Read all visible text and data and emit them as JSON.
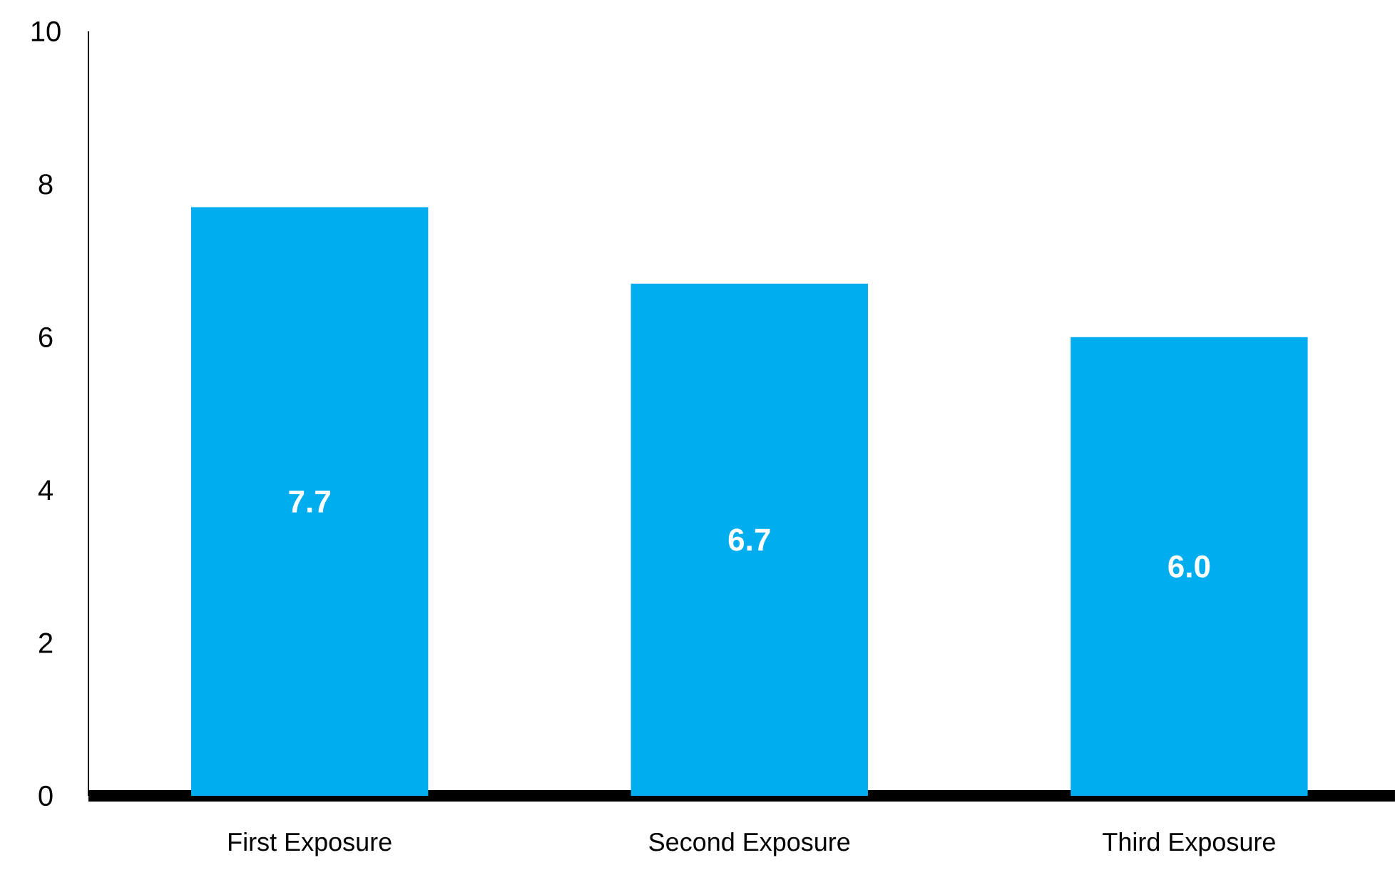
{
  "chart_data": {
    "type": "bar",
    "categories": [
      "First Exposure",
      "Second Exposure",
      "Third Exposure"
    ],
    "values": [
      7.7,
      6.7,
      6.0
    ],
    "value_labels": [
      "7.7",
      "6.7",
      "6.0"
    ],
    "color": "#00aeef",
    "ylim": [
      0,
      10
    ],
    "yticks": [
      0,
      2,
      4,
      6,
      8,
      10
    ],
    "grid": false
  }
}
